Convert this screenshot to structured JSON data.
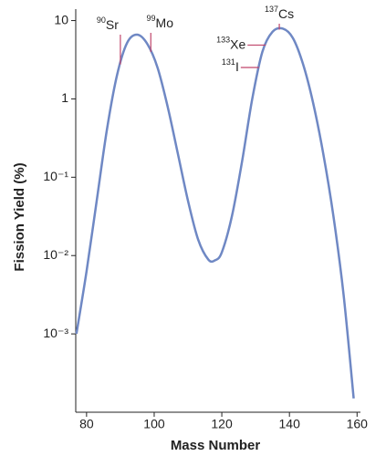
{
  "chart_data": {
    "type": "line",
    "x_label": "Mass Number",
    "y_label": "Fission Yield (%)",
    "log_y": true,
    "color": "#6f88c4",
    "annotation_color": "#c0466b",
    "xlim": [
      76.8,
      161
    ],
    "xticks": [
      80,
      100,
      120,
      140,
      160
    ],
    "ylim": [
      0.0001,
      14
    ],
    "yticks": [
      {
        "value": 0.001,
        "label": "10⁻³"
      },
      {
        "value": 0.01,
        "label": "10⁻²"
      },
      {
        "value": 0.1,
        "label": "10⁻¹"
      },
      1,
      10
    ],
    "x": [
      77,
      80,
      83,
      86,
      89,
      92,
      95,
      98,
      101,
      104,
      107,
      110,
      113,
      116,
      118,
      120,
      123,
      126,
      129,
      132,
      135,
      138,
      141,
      144,
      147,
      150,
      153,
      156,
      159
    ],
    "values": [
      0.001,
      0.0063,
      0.05,
      0.4,
      2.0,
      5.2,
      6.6,
      5.0,
      2.5,
      0.79,
      0.2,
      0.05,
      0.016,
      0.0089,
      0.0087,
      0.011,
      0.032,
      0.16,
      1.0,
      4.0,
      7.2,
      7.9,
      6.0,
      2.8,
      0.89,
      0.2,
      0.032,
      0.0032,
      0.00015
    ],
    "annotations": [
      {
        "x": 90,
        "label": "Sr"
      },
      {
        "x": 99,
        "label": "Mo"
      },
      {
        "x": 133,
        "label": "Xe"
      },
      {
        "x": 131,
        "label": "I"
      },
      {
        "x": 137,
        "label": "Cs"
      }
    ]
  }
}
